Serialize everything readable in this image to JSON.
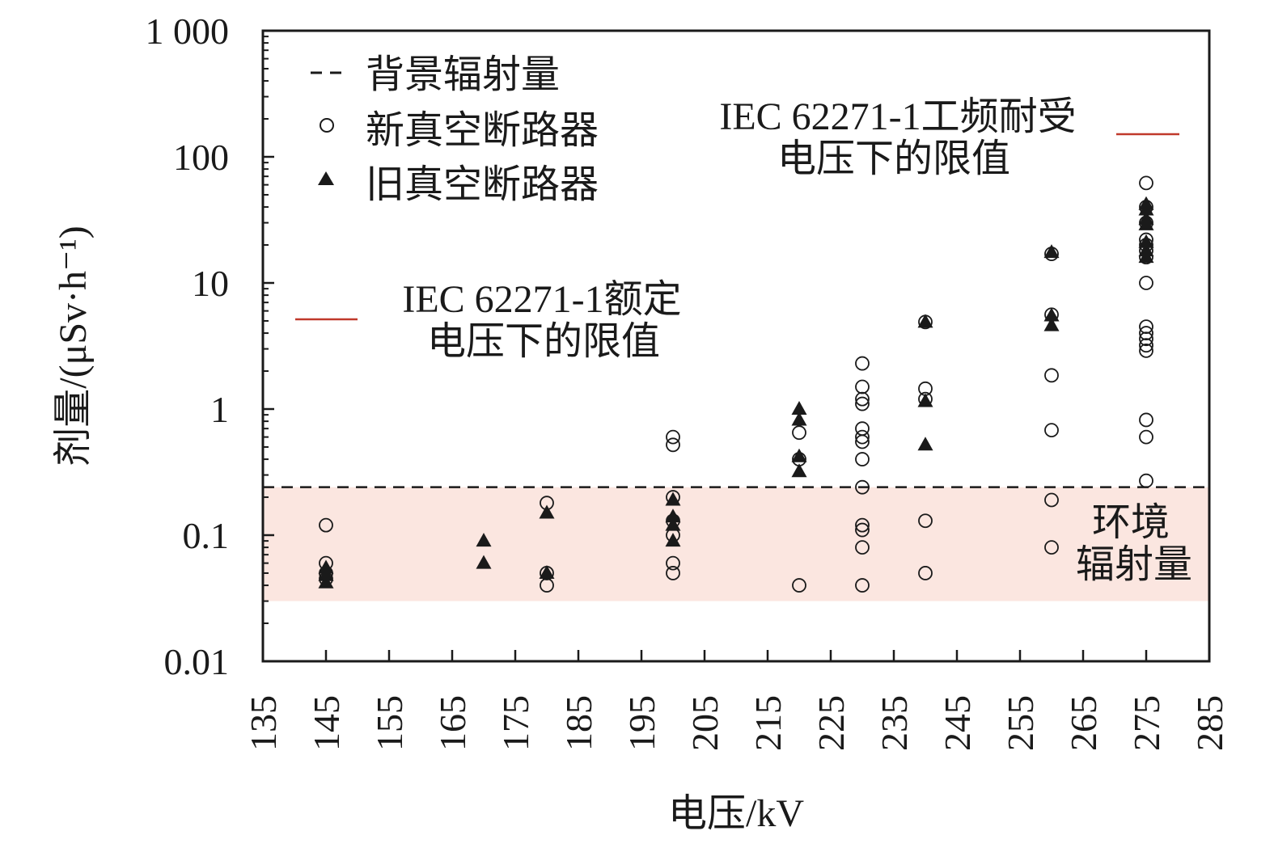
{
  "chart_data": {
    "type": "scatter",
    "xlabel": "电压/kV",
    "ylabel": "剂量/(μSv·h⁻¹)",
    "xlim": [
      135,
      285
    ],
    "ylim": [
      0.01,
      1000
    ],
    "y_scale": "log",
    "x_ticks": [
      135,
      145,
      155,
      165,
      175,
      185,
      195,
      205,
      215,
      225,
      235,
      245,
      255,
      265,
      275,
      285
    ],
    "x_tick_labels": [
      "135",
      "145",
      "155",
      "165",
      "175",
      "185",
      "195",
      "205",
      "215",
      "225",
      "235",
      "245",
      "255",
      "265",
      "275",
      "285"
    ],
    "y_ticks": [
      0.01,
      0.1,
      1,
      10,
      100,
      1000
    ],
    "y_tick_labels": [
      "0.01",
      "0.1",
      "1",
      "10",
      "100",
      "1 000"
    ],
    "grid": false,
    "legend": {
      "placement": "top-left",
      "entries": [
        {
          "label": "背景辐射量",
          "marker": "dashed-line"
        },
        {
          "label": "新真空断路器",
          "marker": "open-circle"
        },
        {
          "label": "旧真空断路器",
          "marker": "filled-triangle"
        }
      ]
    },
    "background_level": 0.24,
    "environment_band": {
      "range": [
        0.03,
        0.24
      ],
      "label_line1": "环境",
      "label_line2": "辐射量",
      "color": "#fbe6e0"
    },
    "limit_annotations": [
      {
        "line1": "IEC 62271-1工频耐受",
        "line2": "电压下的限值",
        "color": "#c0392b"
      },
      {
        "line1": "IEC 62271-1额定",
        "line2": "电压下的限值",
        "color": "#c0392b"
      }
    ],
    "series": [
      {
        "marker": "open-circle",
        "points": [
          [
            145,
            0.12
          ],
          [
            145,
            0.06
          ],
          [
            145,
            0.05
          ],
          [
            145,
            0.045
          ],
          [
            180,
            0.18
          ],
          [
            180,
            0.05
          ],
          [
            180,
            0.04
          ],
          [
            200,
            0.6
          ],
          [
            200,
            0.52
          ],
          [
            200,
            0.2
          ],
          [
            200,
            0.13
          ],
          [
            200,
            0.1
          ],
          [
            200,
            0.06
          ],
          [
            200,
            0.05
          ],
          [
            220,
            0.65
          ],
          [
            220,
            0.4
          ],
          [
            220,
            0.04
          ],
          [
            230,
            2.3
          ],
          [
            230,
            1.5
          ],
          [
            230,
            1.2
          ],
          [
            230,
            1.1
          ],
          [
            230,
            0.7
          ],
          [
            230,
            0.6
          ],
          [
            230,
            0.55
          ],
          [
            230,
            0.4
          ],
          [
            230,
            0.24
          ],
          [
            230,
            0.12
          ],
          [
            230,
            0.11
          ],
          [
            230,
            0.08
          ],
          [
            230,
            0.04
          ],
          [
            240,
            4.9
          ],
          [
            240,
            1.45
          ],
          [
            240,
            1.2
          ],
          [
            240,
            0.13
          ],
          [
            240,
            0.05
          ],
          [
            260,
            17
          ],
          [
            260,
            5.6
          ],
          [
            260,
            1.85
          ],
          [
            260,
            0.68
          ],
          [
            260,
            0.19
          ],
          [
            260,
            0.08
          ],
          [
            275,
            62
          ],
          [
            275,
            40
          ],
          [
            275,
            30
          ],
          [
            275,
            22
          ],
          [
            275,
            20
          ],
          [
            275,
            18
          ],
          [
            275,
            16
          ],
          [
            275,
            10
          ],
          [
            275,
            4.5
          ],
          [
            275,
            4
          ],
          [
            275,
            3.6
          ],
          [
            275,
            3.2
          ],
          [
            275,
            2.9
          ],
          [
            275,
            0.82
          ],
          [
            275,
            0.6
          ],
          [
            275,
            0.27
          ]
        ]
      },
      {
        "marker": "filled-triangle",
        "points": [
          [
            145,
            0.055
          ],
          [
            145,
            0.048
          ],
          [
            145,
            0.042
          ],
          [
            170,
            0.09
          ],
          [
            170,
            0.06
          ],
          [
            180,
            0.15
          ],
          [
            180,
            0.05
          ],
          [
            200,
            0.19
          ],
          [
            200,
            0.14
          ],
          [
            200,
            0.12
          ],
          [
            200,
            0.09
          ],
          [
            220,
            1.0
          ],
          [
            220,
            0.82
          ],
          [
            220,
            0.42
          ],
          [
            220,
            0.32
          ],
          [
            240,
            4.9
          ],
          [
            240,
            1.15
          ],
          [
            240,
            0.52
          ],
          [
            260,
            17.5
          ],
          [
            260,
            5.5
          ],
          [
            260,
            4.6
          ],
          [
            275,
            42
          ],
          [
            275,
            38
          ],
          [
            275,
            32
          ],
          [
            275,
            29
          ],
          [
            275,
            21
          ],
          [
            275,
            18
          ],
          [
            275,
            16
          ]
        ]
      }
    ]
  }
}
